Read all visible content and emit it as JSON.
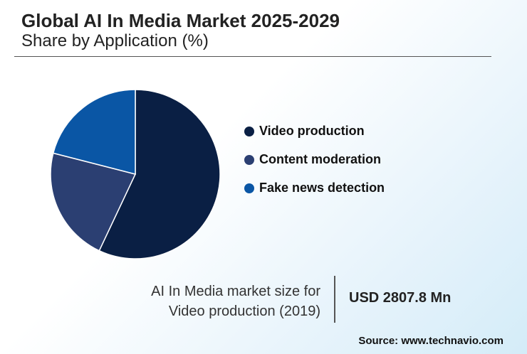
{
  "chart_data": {
    "type": "pie",
    "title": "Global AI In Media Market 2025-2029",
    "subtitle": "Share by Application (%)",
    "categories": [
      "Video production",
      "Content moderation",
      "Fake news detection"
    ],
    "values": [
      57,
      22,
      21
    ],
    "colors": [
      "#0a1f44",
      "#2b3f72",
      "#0a56a5"
    ],
    "legend": "right"
  },
  "footnote": {
    "label_lines": [
      "AI In Media market size for",
      "Video production (2019)"
    ],
    "value": "USD 2807.8 Mn"
  },
  "source": "Source: www.technavio.com"
}
